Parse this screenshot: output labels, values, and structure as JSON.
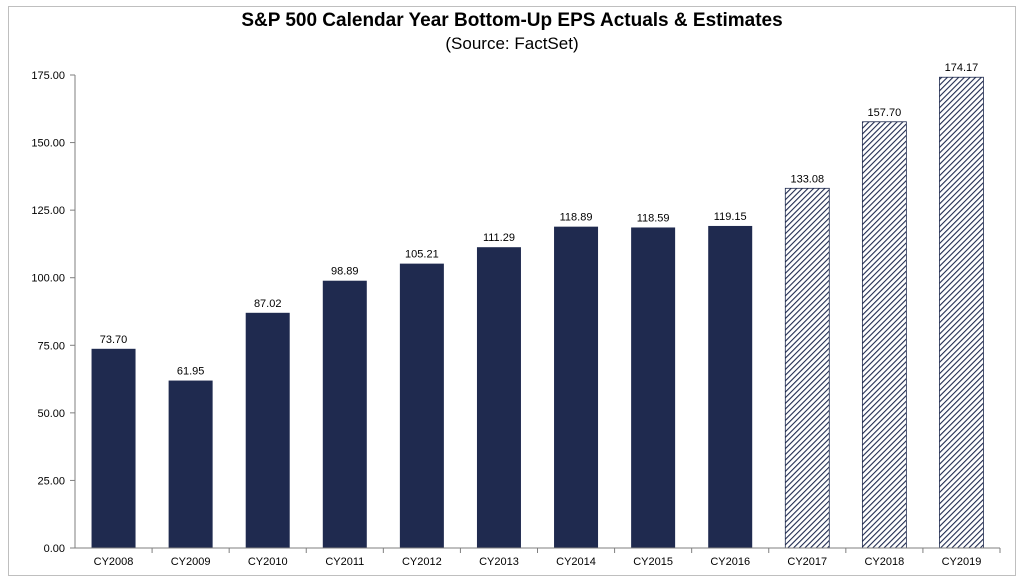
{
  "chart_data": {
    "type": "bar",
    "title": "S&P 500 Calendar Year Bottom-Up EPS Actuals & Estimates",
    "subtitle": "(Source: FactSet)",
    "categories": [
      "CY2008",
      "CY2009",
      "CY2010",
      "CY2011",
      "CY2012",
      "CY2013",
      "CY2014",
      "CY2015",
      "CY2016",
      "CY2017",
      "CY2018",
      "CY2019"
    ],
    "values": [
      73.7,
      61.95,
      87.02,
      98.89,
      105.21,
      111.29,
      118.89,
      118.59,
      119.15,
      133.08,
      157.7,
      174.17
    ],
    "data_labels": [
      "73.70",
      "61.95",
      "87.02",
      "98.89",
      "105.21",
      "111.29",
      "118.89",
      "118.59",
      "119.15",
      "133.08",
      "157.70",
      "174.17"
    ],
    "estimate": [
      false,
      false,
      false,
      false,
      false,
      false,
      false,
      false,
      false,
      true,
      true,
      true
    ],
    "ylim": [
      0,
      175
    ],
    "yticks": [
      0,
      25,
      50,
      75,
      100,
      125,
      150,
      175
    ],
    "ytick_labels": [
      "0.00",
      "25.00",
      "50.00",
      "75.00",
      "100.00",
      "125.00",
      "150.00",
      "175.00"
    ],
    "xlabel": "",
    "ylabel": "",
    "grid": false,
    "colors": {
      "actual": "#1f2a4f",
      "estimate_stripe": "#1f2a4f",
      "estimate_bg": "#ffffff",
      "axis": "#7f7f7f"
    }
  }
}
